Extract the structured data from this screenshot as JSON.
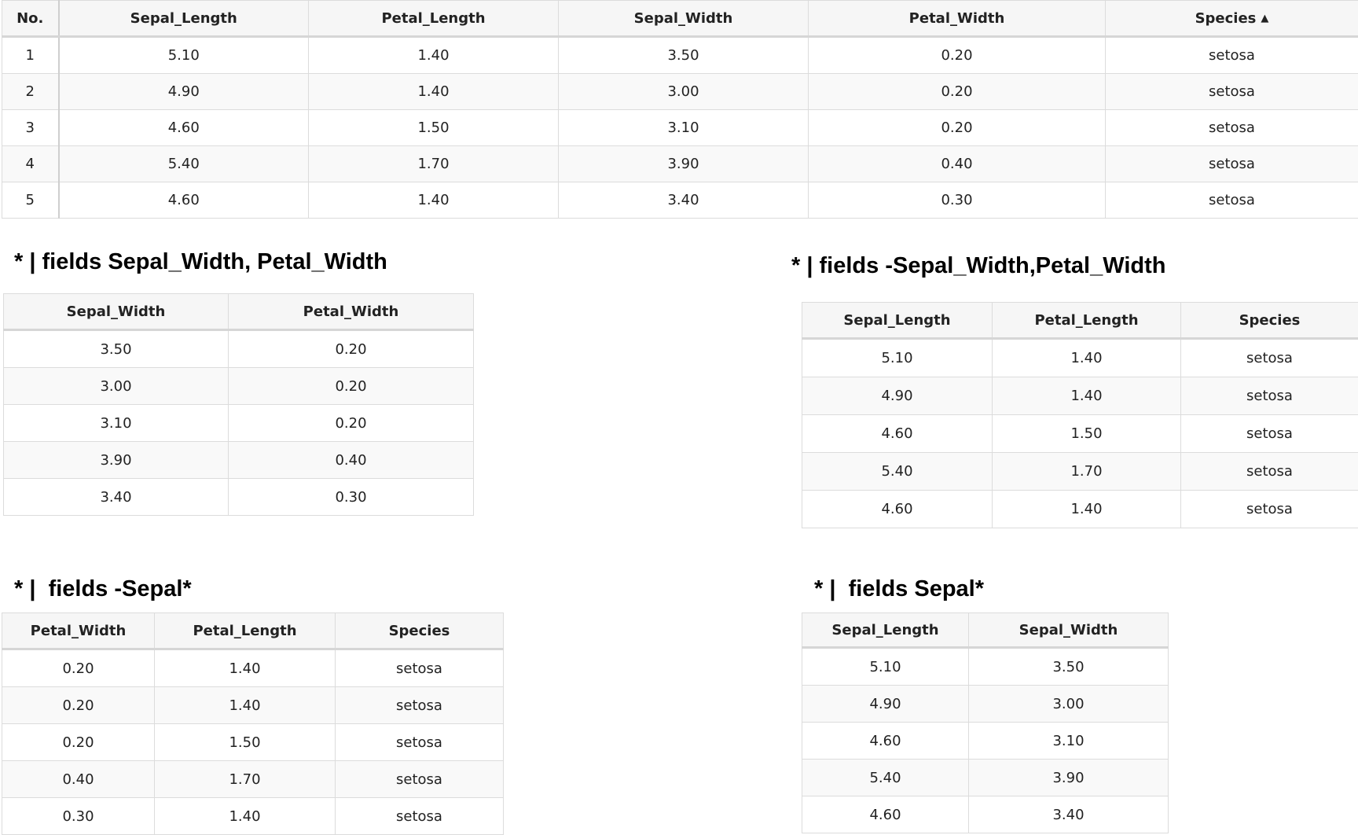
{
  "main_table": {
    "columns": [
      "No.",
      "Sepal_Length",
      "Petal_Length",
      "Sepal_Width",
      "Petal_Width",
      "Species"
    ],
    "sort_indicator": "▲",
    "rows": [
      [
        "1",
        "5.10",
        "1.40",
        "3.50",
        "0.20",
        "setosa"
      ],
      [
        "2",
        "4.90",
        "1.40",
        "3.00",
        "0.20",
        "setosa"
      ],
      [
        "3",
        "4.60",
        "1.50",
        "3.10",
        "0.20",
        "setosa"
      ],
      [
        "4",
        "5.40",
        "1.70",
        "3.90",
        "0.40",
        "setosa"
      ],
      [
        "5",
        "4.60",
        "1.40",
        "3.40",
        "0.30",
        "setosa"
      ]
    ]
  },
  "section_a": {
    "title": "* | fields Sepal_Width, Petal_Width",
    "columns": [
      "Sepal_Width",
      "Petal_Width"
    ],
    "rows": [
      [
        "3.50",
        "0.20"
      ],
      [
        "3.00",
        "0.20"
      ],
      [
        "3.10",
        "0.20"
      ],
      [
        "3.90",
        "0.40"
      ],
      [
        "3.40",
        "0.30"
      ]
    ]
  },
  "section_b": {
    "title": "* | fields -Sepal_Width,Petal_Width",
    "columns": [
      "Sepal_Length",
      "Petal_Length",
      "Species"
    ],
    "rows": [
      [
        "5.10",
        "1.40",
        "setosa"
      ],
      [
        "4.90",
        "1.40",
        "setosa"
      ],
      [
        "4.60",
        "1.50",
        "setosa"
      ],
      [
        "5.40",
        "1.70",
        "setosa"
      ],
      [
        "4.60",
        "1.40",
        "setosa"
      ]
    ]
  },
  "section_c": {
    "title": "* |  fields -Sepal*",
    "columns": [
      "Petal_Width",
      "Petal_Length",
      "Species"
    ],
    "rows": [
      [
        "0.20",
        "1.40",
        "setosa"
      ],
      [
        "0.20",
        "1.40",
        "setosa"
      ],
      [
        "0.20",
        "1.50",
        "setosa"
      ],
      [
        "0.40",
        "1.70",
        "setosa"
      ],
      [
        "0.30",
        "1.40",
        "setosa"
      ]
    ]
  },
  "section_d": {
    "title": "* |  fields Sepal*",
    "columns": [
      "Sepal_Length",
      "Sepal_Width"
    ],
    "rows": [
      [
        "5.10",
        "3.50"
      ],
      [
        "4.90",
        "3.00"
      ],
      [
        "4.60",
        "3.10"
      ],
      [
        "5.40",
        "3.90"
      ],
      [
        "4.60",
        "3.40"
      ]
    ]
  }
}
